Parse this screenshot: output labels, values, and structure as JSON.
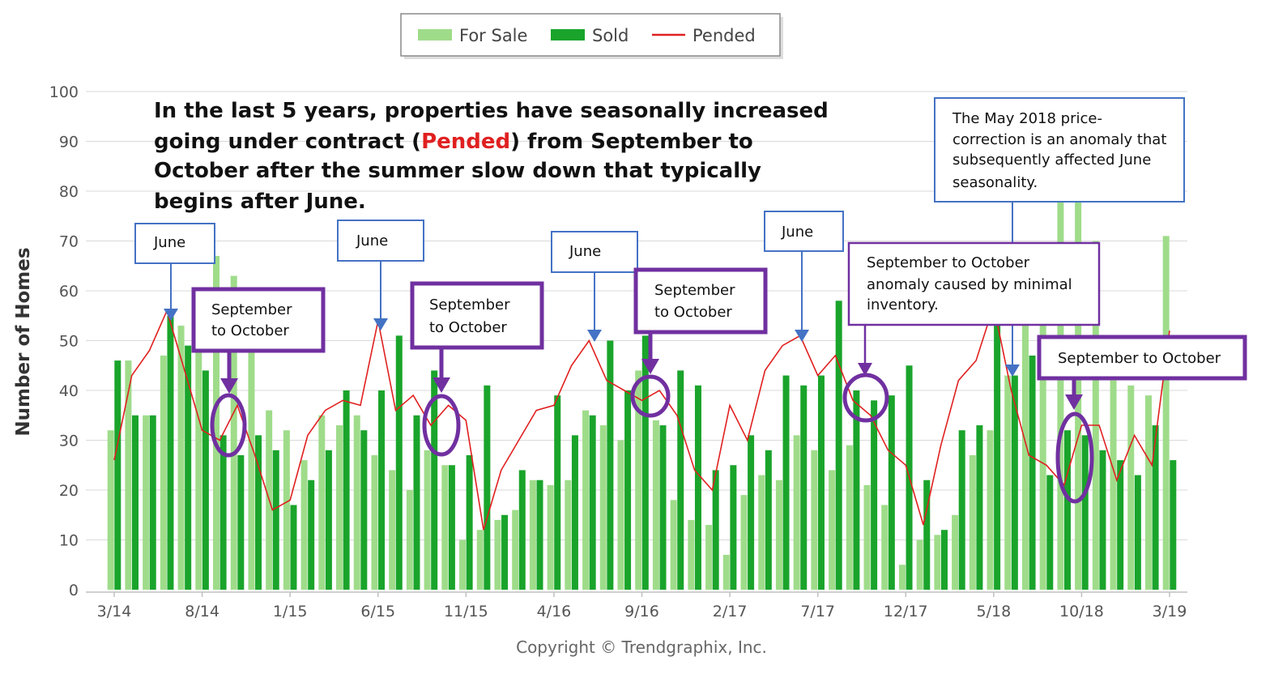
{
  "chart_data": {
    "type": "bar",
    "ylabel": "Number of Homes",
    "ylim": [
      0,
      100
    ],
    "yticks": [
      0,
      10,
      20,
      30,
      40,
      50,
      60,
      70,
      80,
      90,
      100
    ],
    "grid": true,
    "legend_position": "top-center",
    "colors": {
      "for_sale": "#9fdc8a",
      "sold": "#1aa42b",
      "pended": "#e02020",
      "annotation_blue": "#4472c4",
      "annotation_purple": "#7030a0",
      "arrow": "#4472c4"
    },
    "x_tick_labels": [
      "3/14",
      "8/14",
      "1/15",
      "6/15",
      "11/15",
      "4/16",
      "9/16",
      "2/17",
      "7/17",
      "12/17",
      "5/18",
      "10/18",
      "3/19"
    ],
    "months": [
      "3/14",
      "4/14",
      "5/14",
      "6/14",
      "7/14",
      "8/14",
      "9/14",
      "10/14",
      "11/14",
      "12/14",
      "1/15",
      "2/15",
      "3/15",
      "4/15",
      "5/15",
      "6/15",
      "7/15",
      "8/15",
      "9/15",
      "10/15",
      "11/15",
      "12/15",
      "1/16",
      "2/16",
      "3/16",
      "4/16",
      "5/16",
      "6/16",
      "7/16",
      "8/16",
      "9/16",
      "10/16",
      "11/16",
      "12/16",
      "1/17",
      "2/17",
      "3/17",
      "4/17",
      "5/17",
      "6/17",
      "7/17",
      "8/17",
      "9/17",
      "10/17",
      "11/17",
      "12/17",
      "1/18",
      "2/18",
      "3/18",
      "4/18",
      "5/18",
      "6/18",
      "7/18",
      "8/18",
      "9/18",
      "10/18",
      "11/18",
      "12/18",
      "1/19",
      "2/19",
      "3/19"
    ],
    "series": [
      {
        "name": "For Sale",
        "values": [
          32,
          46,
          35,
          47,
          53,
          54,
          67,
          63,
          51,
          36,
          32,
          26,
          35,
          33,
          35,
          27,
          24,
          20,
          28,
          25,
          10,
          12,
          14,
          16,
          22,
          21,
          22,
          36,
          33,
          30,
          44,
          34,
          18,
          14,
          13,
          7,
          19,
          23,
          22,
          31,
          28,
          24,
          29,
          21,
          17,
          5,
          10,
          11,
          15,
          27,
          32,
          43,
          60,
          66,
          97,
          82,
          70,
          42,
          41,
          39,
          71
        ]
      },
      {
        "name": "Sold",
        "values": [
          46,
          35,
          35,
          55,
          49,
          44,
          31,
          27,
          31,
          28,
          17,
          22,
          28,
          40,
          32,
          40,
          51,
          35,
          44,
          25,
          27,
          41,
          15,
          24,
          22,
          39,
          31,
          35,
          50,
          40,
          51,
          33,
          44,
          41,
          24,
          25,
          31,
          28,
          43,
          41,
          43,
          58,
          40,
          38,
          39,
          45,
          22,
          12,
          32,
          33,
          59,
          43,
          47,
          23,
          32,
          31,
          28,
          26,
          23,
          33,
          26
        ]
      },
      {
        "name": "Pended",
        "values": [
          26,
          43,
          48,
          56,
          44,
          32,
          30,
          37,
          27,
          16,
          18,
          31,
          36,
          38,
          37,
          54,
          36,
          39,
          33,
          37,
          34,
          12,
          24,
          30,
          36,
          37,
          45,
          50,
          42,
          40,
          38,
          40,
          35,
          24,
          20,
          37,
          30,
          44,
          49,
          51,
          43,
          47,
          38,
          35,
          28,
          25,
          13,
          29,
          42,
          46,
          57,
          40,
          27,
          25,
          21,
          33,
          33,
          22,
          31,
          25,
          52
        ]
      }
    ]
  },
  "legend": {
    "for_sale": "For Sale",
    "sold": "Sold",
    "pended": "Pended"
  },
  "headline": {
    "line1": "In the last 5 years, properties have seasonally increased",
    "line2_pre": "going under contract (",
    "line2_red": "Pended",
    "line2_post": ") from September to",
    "line3": "October after the summer slow down that typically",
    "line4": "begins after June."
  },
  "annotations": {
    "june_1": "June",
    "june_2": "June",
    "june_3": "June",
    "june_4": "June",
    "sep_oct_1": [
      "September",
      "to October"
    ],
    "sep_oct_2": [
      "September",
      "to October"
    ],
    "sep_oct_3": [
      "September",
      "to October"
    ],
    "sep_oct_4": [
      "September to October",
      "anomaly caused by minimal",
      "inventory."
    ],
    "sep_oct_5": "September to October",
    "may_2018": [
      "The May 2018 price-",
      "correction  is an anomaly that",
      "subsequently affected June",
      "seasonality."
    ]
  },
  "copyright": "Copyright © Trendgraphix, Inc."
}
